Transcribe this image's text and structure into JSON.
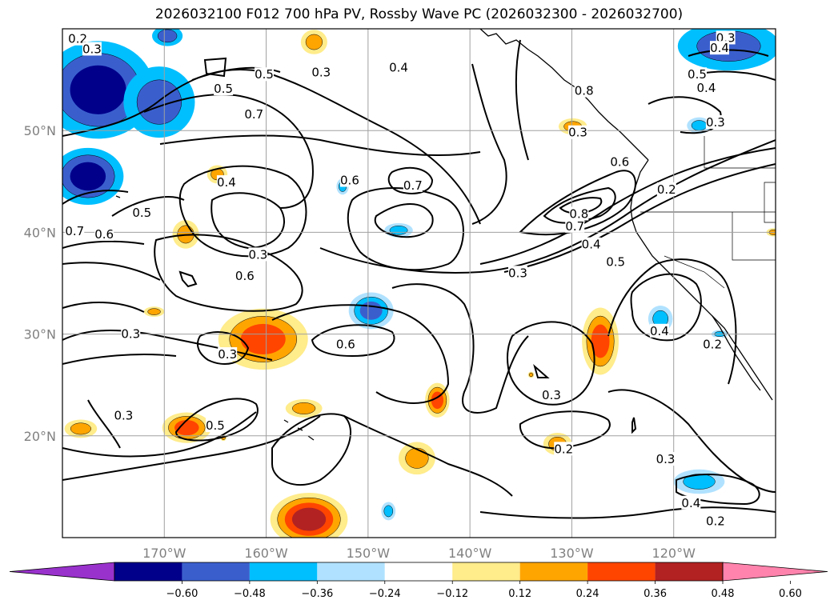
{
  "title": "2026032100 F012 700 hPa PV, Rossby Wave PC (2026032300 - 2026032700)",
  "map": {
    "lon_range": [
      -180,
      -110
    ],
    "lat_range": [
      10,
      60
    ],
    "lon_ticks": [
      {
        "lon": -170,
        "label": "170°W"
      },
      {
        "lon": -160,
        "label": "160°W"
      },
      {
        "lon": -150,
        "label": "150°W"
      },
      {
        "lon": -140,
        "label": "140°W"
      },
      {
        "lon": -130,
        "label": "130°W"
      },
      {
        "lon": -120,
        "label": "120°W"
      }
    ],
    "lat_ticks": [
      {
        "lat": 20,
        "label": "20°N"
      },
      {
        "lat": 30,
        "label": "30°N"
      },
      {
        "lat": 40,
        "label": "40°N"
      },
      {
        "lat": 50,
        "label": "50°N"
      }
    ],
    "contour_labels": [
      {
        "lon": -178.5,
        "lat": 59,
        "text": "0.2"
      },
      {
        "lon": -177.1,
        "lat": 58,
        "text": "0.3"
      },
      {
        "lon": -147,
        "lat": 56.2,
        "text": "0.4"
      },
      {
        "lon": -164.2,
        "lat": 54.1,
        "text": "0.5"
      },
      {
        "lon": -160.2,
        "lat": 55.5,
        "text": "0.5"
      },
      {
        "lon": -161.2,
        "lat": 51.6,
        "text": "0.7"
      },
      {
        "lon": -154.6,
        "lat": 55.7,
        "text": "0.3"
      },
      {
        "lon": -114.9,
        "lat": 59.1,
        "text": "0.3"
      },
      {
        "lon": -115.5,
        "lat": 58.1,
        "text": "0.4"
      },
      {
        "lon": -117.7,
        "lat": 55.5,
        "text": "0.5"
      },
      {
        "lon": -116.8,
        "lat": 54.2,
        "text": "0.4"
      },
      {
        "lon": -115.9,
        "lat": 50.8,
        "text": "0.3"
      },
      {
        "lon": -128.8,
        "lat": 53.9,
        "text": "0.8"
      },
      {
        "lon": -129.4,
        "lat": 49.8,
        "text": "0.3"
      },
      {
        "lon": -125.3,
        "lat": 46.9,
        "text": "0.6"
      },
      {
        "lon": -120.7,
        "lat": 44.2,
        "text": "0.2"
      },
      {
        "lon": -163.9,
        "lat": 44.9,
        "text": "0.4"
      },
      {
        "lon": -151.8,
        "lat": 45.1,
        "text": "0.6"
      },
      {
        "lon": -145.6,
        "lat": 44.6,
        "text": "0.7"
      },
      {
        "lon": -175.9,
        "lat": 39.8,
        "text": "0.6"
      },
      {
        "lon": -178.8,
        "lat": 40.1,
        "text": "0.7"
      },
      {
        "lon": -172.2,
        "lat": 41.9,
        "text": "0.5"
      },
      {
        "lon": -160.8,
        "lat": 37.8,
        "text": "0.3"
      },
      {
        "lon": -162.1,
        "lat": 35.7,
        "text": "0.6"
      },
      {
        "lon": -129.3,
        "lat": 41.8,
        "text": "0.8"
      },
      {
        "lon": -129.7,
        "lat": 40.6,
        "text": "0.7"
      },
      {
        "lon": -128.1,
        "lat": 38.8,
        "text": "0.4"
      },
      {
        "lon": -125.7,
        "lat": 37.1,
        "text": "0.5"
      },
      {
        "lon": -135.3,
        "lat": 36,
        "text": "0.3"
      },
      {
        "lon": -173.3,
        "lat": 30,
        "text": "0.3"
      },
      {
        "lon": -163.8,
        "lat": 28,
        "text": "0.3"
      },
      {
        "lon": -152.2,
        "lat": 29,
        "text": "0.6"
      },
      {
        "lon": -121.4,
        "lat": 30.3,
        "text": "0.4"
      },
      {
        "lon": -116.2,
        "lat": 29,
        "text": "0.2"
      },
      {
        "lon": -174,
        "lat": 22,
        "text": "0.3"
      },
      {
        "lon": -165,
        "lat": 21,
        "text": "0.5"
      },
      {
        "lon": -132,
        "lat": 24,
        "text": "0.3"
      },
      {
        "lon": -130.8,
        "lat": 18.7,
        "text": "0.2"
      },
      {
        "lon": -120.8,
        "lat": 17.7,
        "text": "0.3"
      },
      {
        "lon": -118.3,
        "lat": 13.4,
        "text": "0.4"
      },
      {
        "lon": -115.9,
        "lat": 11.6,
        "text": "0.2"
      }
    ]
  },
  "colorbar": {
    "colors": [
      "#9932cc",
      "#00008b",
      "#3a5fcd",
      "#00bfff",
      "#b0e2ff",
      "#ffffff",
      "#ffec8b",
      "#ffa500",
      "#ff4500",
      "#b22222",
      "#ff83ac"
    ],
    "tick_labels": [
      "−0.60",
      "−0.48",
      "−0.36",
      "−0.24",
      "−0.12",
      "0.12",
      "0.24",
      "0.36",
      "0.48",
      "0.60"
    ]
  },
  "shaded_regions": [
    {
      "lon": -176.5,
      "lat": 54,
      "rlon": 5.5,
      "rlat": 4.8,
      "colors": [
        "#00bfff",
        "#3a5fcd",
        "#00008b"
      ]
    },
    {
      "lon": -170.5,
      "lat": 52.8,
      "rlon": 3.5,
      "rlat": 3.5,
      "colors": [
        "#00bfff",
        "#3a5fcd"
      ]
    },
    {
      "lon": -169.7,
      "lat": 59.3,
      "rlon": 1.5,
      "rlat": 1,
      "colors": [
        "#00bfff",
        "#3a5fcd"
      ]
    },
    {
      "lon": -177.5,
      "lat": 45.5,
      "rlon": 3.5,
      "rlat": 2.8,
      "colors": [
        "#00bfff",
        "#3a5fcd",
        "#00008b"
      ]
    },
    {
      "lon": -114.6,
      "lat": 58.3,
      "rlon": 5,
      "rlat": 2.4,
      "colors": [
        "#00bfff",
        "#3a5fcd"
      ]
    },
    {
      "lon": -117.5,
      "lat": 50.5,
      "rlon": 1.2,
      "rlat": 0.8,
      "colors": [
        "#b0e2ff",
        "#00bfff"
      ]
    },
    {
      "lon": -147,
      "lat": 40.2,
      "rlon": 1.4,
      "rlat": 0.7,
      "colors": [
        "#b0e2ff",
        "#00bfff"
      ]
    },
    {
      "lon": -152.5,
      "lat": 44.5,
      "rlon": 0.6,
      "rlat": 0.8,
      "colors": [
        "#b0e2ff",
        "#00bfff"
      ]
    },
    {
      "lon": -149.7,
      "lat": 32.3,
      "rlon": 2.2,
      "rlat": 1.8,
      "colors": [
        "#b0e2ff",
        "#00bfff",
        "#3a5fcd"
      ]
    },
    {
      "lon": -121.3,
      "lat": 31.5,
      "rlon": 1.2,
      "rlat": 1.3,
      "colors": [
        "#b0e2ff",
        "#00bfff"
      ]
    },
    {
      "lon": -117.5,
      "lat": 15.5,
      "rlon": 2.5,
      "rlat": 1.2,
      "colors": [
        "#b0e2ff",
        "#00bfff"
      ]
    },
    {
      "lon": -148,
      "lat": 12.6,
      "rlon": 0.7,
      "rlat": 0.9,
      "colors": [
        "#b0e2ff",
        "#00bfff"
      ]
    },
    {
      "lon": -115.5,
      "lat": 30,
      "rlon": 0.8,
      "rlat": 0.4,
      "colors": [
        "#b0e2ff",
        "#00bfff"
      ]
    },
    {
      "lon": -164.8,
      "lat": 45.7,
      "rlon": 1,
      "rlat": 0.9,
      "colors": [
        "#ffec8b",
        "#ffa500"
      ]
    },
    {
      "lon": -167.9,
      "lat": 39.8,
      "rlon": 1.3,
      "rlat": 1.4,
      "colors": [
        "#ffec8b",
        "#ffa500"
      ]
    },
    {
      "lon": -171,
      "lat": 32.2,
      "rlon": 1,
      "rlat": 0.5,
      "colors": [
        "#ffec8b",
        "#ffa500"
      ]
    },
    {
      "lon": -160.3,
      "lat": 29.5,
      "rlon": 4.4,
      "rlat": 3,
      "colors": [
        "#ffec8b",
        "#ffa500",
        "#ff4500"
      ]
    },
    {
      "lon": -164.2,
      "lat": 19.8,
      "rlon": 0.3,
      "rlat": 0.3,
      "colors": [
        "#ffec8b",
        "#ffa500"
      ]
    },
    {
      "lon": -167.8,
      "lat": 20.8,
      "rlon": 2.4,
      "rlat": 1.5,
      "colors": [
        "#ffec8b",
        "#ffa500",
        "#ff4500"
      ]
    },
    {
      "lon": -178.2,
      "lat": 20.7,
      "rlon": 1.6,
      "rlat": 0.9,
      "colors": [
        "#ffec8b",
        "#ffa500"
      ]
    },
    {
      "lon": -156.3,
      "lat": 22.7,
      "rlon": 1.8,
      "rlat": 0.9,
      "colors": [
        "#ffec8b",
        "#ffa500"
      ]
    },
    {
      "lon": -143.2,
      "lat": 23.5,
      "rlon": 1.2,
      "rlat": 1.7,
      "colors": [
        "#ffec8b",
        "#ffa500",
        "#ff4500"
      ]
    },
    {
      "lon": -145.2,
      "lat": 17.8,
      "rlon": 1.8,
      "rlat": 1.6,
      "colors": [
        "#ffec8b",
        "#ffa500"
      ]
    },
    {
      "lon": -155.8,
      "lat": 11.8,
      "rlon": 3.8,
      "rlat": 2.6,
      "colors": [
        "#ffec8b",
        "#ffa500",
        "#ff4500",
        "#b22222"
      ]
    },
    {
      "lon": -127.2,
      "lat": 29.3,
      "rlon": 1.8,
      "rlat": 3.3,
      "colors": [
        "#ffec8b",
        "#ffa500",
        "#ff4500"
      ]
    },
    {
      "lon": -131.4,
      "lat": 19.2,
      "rlon": 1.4,
      "rlat": 1.1,
      "colors": [
        "#ffec8b",
        "#ffa500"
      ]
    },
    {
      "lon": -129.9,
      "lat": 50.4,
      "rlon": 1.4,
      "rlat": 0.8,
      "colors": [
        "#ffec8b",
        "#ffa500"
      ]
    },
    {
      "lon": -155.3,
      "lat": 58.7,
      "rlon": 1.3,
      "rlat": 1.2,
      "colors": [
        "#ffec8b",
        "#ffa500"
      ]
    },
    {
      "lon": -134,
      "lat": 26,
      "rlon": 0.3,
      "rlat": 0.3,
      "colors": [
        "#ffec8b",
        "#ffa500"
      ]
    },
    {
      "lon": -110.2,
      "lat": 40,
      "rlon": 0.7,
      "rlat": 0.4,
      "colors": [
        "#ffec8b",
        "#ffa500"
      ]
    }
  ]
}
